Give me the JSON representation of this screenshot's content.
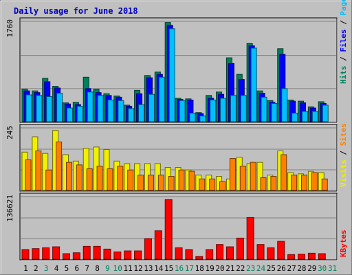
{
  "title": "Daily usage for June 2018",
  "days": [
    "1",
    "2",
    "3",
    "4",
    "5",
    "6",
    "7",
    "8",
    "9",
    "10",
    "11",
    "12",
    "13",
    "14",
    "15",
    "16",
    "17",
    "18",
    "19",
    "20",
    "21",
    "22",
    "23",
    "24",
    "25",
    "26",
    "27",
    "28",
    "29",
    "30",
    "31"
  ],
  "weekend_days": [
    "3",
    "9",
    "10",
    "16",
    "17",
    "23",
    "24",
    "30",
    "31"
  ],
  "right_labels": {
    "top": [
      {
        "text": "Hits",
        "color": "#00805c"
      },
      {
        "text": " / ",
        "color": "#000000"
      },
      {
        "text": "Files",
        "color": "#0000ff"
      },
      {
        "text": " / ",
        "color": "#000000"
      },
      {
        "text": "Pages",
        "color": "#00c0ff"
      }
    ],
    "middle": [
      {
        "text": "Visits",
        "color": "#f0f000"
      },
      {
        "text": " / ",
        "color": "#000000"
      },
      {
        "text": "Sites",
        "color": "#ff8000"
      }
    ],
    "bottom": [
      {
        "text": "KBytes",
        "color": "#ff0000"
      }
    ]
  },
  "chart_data": [
    {
      "type": "bar",
      "panel": "top",
      "ymax_label": "1760",
      "ylim": [
        0,
        1760
      ],
      "categories": [
        "1",
        "2",
        "3",
        "4",
        "5",
        "6",
        "7",
        "8",
        "9",
        "10",
        "11",
        "12",
        "13",
        "14",
        "15",
        "16",
        "17",
        "18",
        "19",
        "20",
        "21",
        "22",
        "23",
        "24",
        "25",
        "26",
        "27",
        "28",
        "29",
        "30",
        "31"
      ],
      "series": [
        {
          "name": "Hits",
          "color": "#00805c",
          "values": [
            570,
            540,
            760,
            620,
            330,
            340,
            780,
            570,
            490,
            450,
            290,
            550,
            810,
            870,
            1740,
            410,
            400,
            160,
            460,
            520,
            1120,
            830,
            1370,
            540,
            370,
            1280,
            380,
            360,
            260,
            350,
            0
          ]
        },
        {
          "name": "Files",
          "color": "#0000ff",
          "values": [
            540,
            510,
            700,
            590,
            310,
            300,
            580,
            510,
            460,
            430,
            270,
            490,
            770,
            830,
            1690,
            390,
            380,
            140,
            410,
            480,
            1020,
            740,
            1330,
            500,
            340,
            1180,
            360,
            330,
            240,
            320,
            0
          ]
        },
        {
          "name": "Pages",
          "color": "#00c0ff",
          "values": [
            470,
            460,
            440,
            500,
            240,
            270,
            520,
            460,
            380,
            370,
            230,
            300,
            480,
            780,
            1630,
            370,
            150,
            100,
            380,
            410,
            460,
            460,
            1290,
            430,
            320,
            580,
            150,
            180,
            180,
            290,
            0
          ]
        }
      ]
    },
    {
      "type": "bar",
      "panel": "middle",
      "ymax_label": "245",
      "ylim": [
        0,
        245
      ],
      "categories": [
        "1",
        "2",
        "3",
        "4",
        "5",
        "6",
        "7",
        "8",
        "9",
        "10",
        "11",
        "12",
        "13",
        "14",
        "15",
        "16",
        "17",
        "18",
        "19",
        "20",
        "21",
        "22",
        "23",
        "24",
        "25",
        "26",
        "27",
        "28",
        "29",
        "30",
        "31"
      ],
      "series": [
        {
          "name": "Visits",
          "color": "#f0f000",
          "values": [
            150,
            210,
            145,
            235,
            140,
            115,
            165,
            170,
            160,
            115,
            105,
            105,
            105,
            105,
            90,
            90,
            80,
            60,
            60,
            55,
            45,
            130,
            105,
            110,
            60,
            155,
            70,
            65,
            75,
            70,
            0
          ]
        },
        {
          "name": "Sites",
          "color": "#ff8000",
          "values": [
            120,
            155,
            80,
            190,
            110,
            100,
            85,
            95,
            85,
            95,
            80,
            60,
            60,
            60,
            55,
            80,
            75,
            45,
            45,
            35,
            125,
            95,
            110,
            50,
            55,
            140,
            60,
            60,
            70,
            45,
            0
          ]
        }
      ]
    },
    {
      "type": "bar",
      "panel": "bottom",
      "ymax_label": "136621",
      "ylim": [
        0,
        136621
      ],
      "categories": [
        "1",
        "2",
        "3",
        "4",
        "5",
        "6",
        "7",
        "8",
        "9",
        "10",
        "11",
        "12",
        "13",
        "14",
        "15",
        "16",
        "17",
        "18",
        "19",
        "20",
        "21",
        "22",
        "23",
        "24",
        "25",
        "26",
        "27",
        "28",
        "29",
        "30",
        "31"
      ],
      "series": [
        {
          "name": "KBytes",
          "color": "#ff0000",
          "values": [
            21000,
            23000,
            25000,
            27000,
            12000,
            14000,
            28000,
            28000,
            22000,
            16000,
            18000,
            18000,
            45000,
            62000,
            130000,
            25000,
            21000,
            6000,
            21000,
            32000,
            27000,
            46000,
            91000,
            32000,
            25000,
            39000,
            10000,
            11000,
            13000,
            12000,
            0
          ]
        }
      ]
    }
  ]
}
